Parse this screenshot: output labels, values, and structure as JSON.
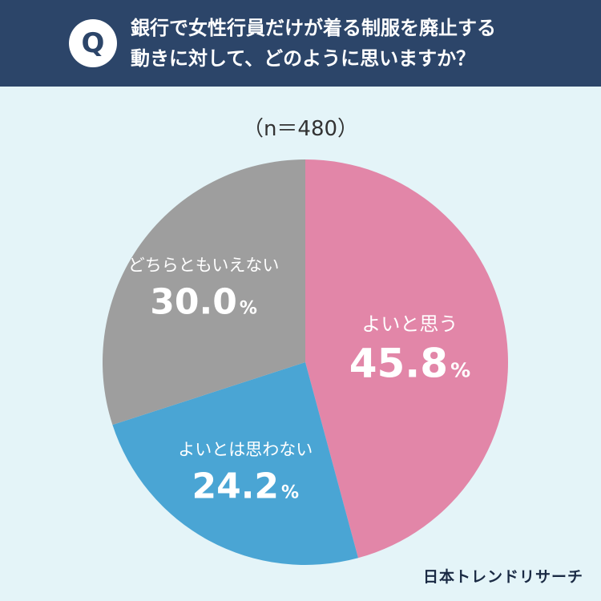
{
  "header": {
    "badge": "Q",
    "question_line1": "銀行で女性行員だけが着る制服を廃止する",
    "question_line2": "動きに対して、どのように思いますか？"
  },
  "sample_size": "（n＝480）",
  "brand": "日本トレンドリサーチ",
  "colors": {
    "header_bg": "#2c4569",
    "page_bg": "#e4f4f8",
    "positive": "#e286a8",
    "negative": "#4aa5d4",
    "neutral": "#9e9e9e"
  },
  "chart_data": {
    "type": "pie",
    "slices": [
      {
        "label": "よいと思う",
        "value": 45.8,
        "display": "45.8",
        "unit": "%",
        "color": "#e286a8"
      },
      {
        "label": "よいとは思わない",
        "value": 24.2,
        "display": "24.2",
        "unit": "%",
        "color": "#4aa5d4"
      },
      {
        "label": "どちらともいえない",
        "value": 30.0,
        "display": "30.0",
        "unit": "%",
        "color": "#9e9e9e"
      }
    ]
  }
}
